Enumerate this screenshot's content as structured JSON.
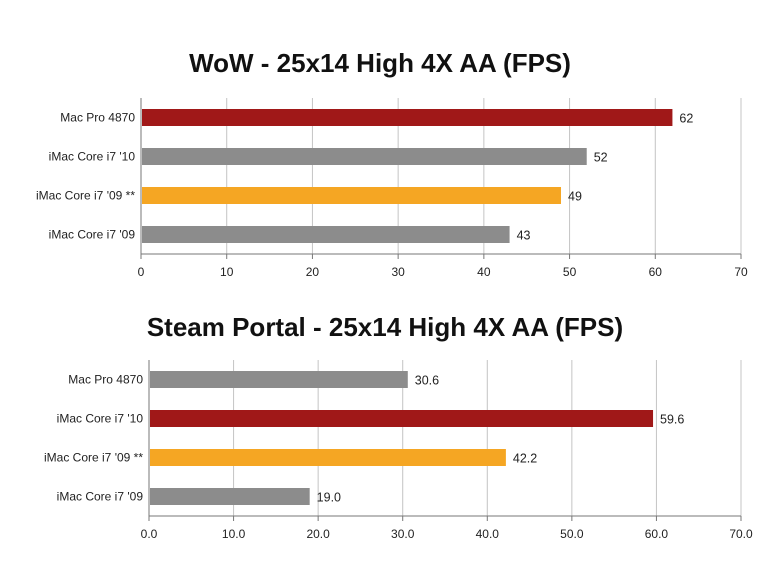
{
  "chart_data": [
    {
      "type": "bar",
      "orientation": "horizontal",
      "title": "WoW - 25x14 High 4X AA (FPS)",
      "categories": [
        "Mac Pro 4870",
        "iMac Core i7 '10",
        "iMac Core i7 '09 **",
        "iMac Core i7 '09"
      ],
      "values": [
        62,
        52,
        49,
        43
      ],
      "value_labels": [
        "62",
        "52",
        "49",
        "43"
      ],
      "bar_colors": [
        "#a01818",
        "#8c8c8c",
        "#f5a623",
        "#8c8c8c"
      ],
      "xlim": [
        0,
        70
      ],
      "xticks": [
        0,
        10,
        20,
        30,
        40,
        50,
        60,
        70
      ],
      "xtick_labels": [
        "0",
        "10",
        "20",
        "30",
        "40",
        "50",
        "60",
        "70"
      ],
      "grid": true,
      "legend": false
    },
    {
      "type": "bar",
      "orientation": "horizontal",
      "title": "Steam Portal - 25x14 High 4X AA (FPS)",
      "categories": [
        "Mac Pro 4870",
        "iMac Core i7 '10",
        "iMac Core i7 '09 **",
        "iMac Core i7 '09"
      ],
      "values": [
        30.6,
        59.6,
        42.2,
        19.0
      ],
      "value_labels": [
        "30.6",
        "59.6",
        "42.2",
        "19.0"
      ],
      "bar_colors": [
        "#8c8c8c",
        "#a01818",
        "#f5a623",
        "#8c8c8c"
      ],
      "xlim": [
        0,
        70
      ],
      "xticks": [
        0,
        10,
        20,
        30,
        40,
        50,
        60,
        70
      ],
      "xtick_labels": [
        "0.0",
        "10.0",
        "20.0",
        "30.0",
        "40.0",
        "50.0",
        "60.0",
        "70.0"
      ],
      "grid": true,
      "legend": false
    }
  ]
}
